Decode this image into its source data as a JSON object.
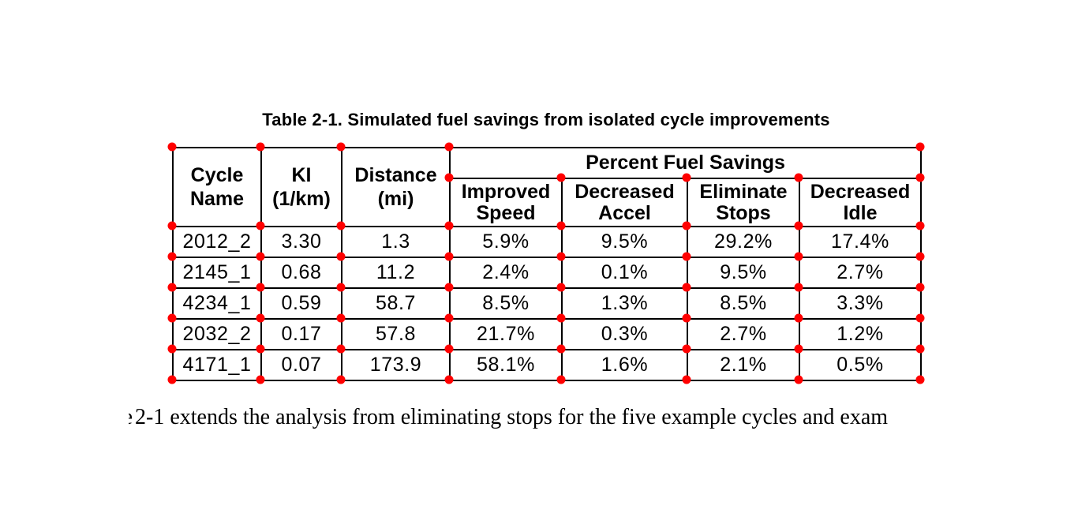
{
  "caption": "Table 2-1. Simulated fuel savings from isolated cycle improvements",
  "table": {
    "headers": {
      "cycle_name": "Cycle\nName",
      "ki": "KI\n(1/km)",
      "distance": "Distance\n(mi)",
      "group": "Percent Fuel Savings",
      "improved_speed": "Improved\nSpeed",
      "decreased_accel": "Decreased\nAccel",
      "eliminate_stops": "Eliminate\nStops",
      "decreased_idle": "Decreased\nIdle"
    },
    "rows": [
      [
        "2012_2",
        "3.30",
        "1.3",
        "5.9%",
        "9.5%",
        "29.2%",
        "17.4%"
      ],
      [
        "2145_1",
        "0.68",
        "11.2",
        "2.4%",
        "0.1%",
        "9.5%",
        "2.7%"
      ],
      [
        "4234_1",
        "0.59",
        "58.7",
        "8.5%",
        "1.3%",
        "8.5%",
        "3.3%"
      ],
      [
        "2032_2",
        "0.17",
        "57.8",
        "21.7%",
        "0.3%",
        "2.7%",
        "1.2%"
      ],
      [
        "4171_1",
        "0.07",
        "173.9",
        "58.1%",
        "1.6%",
        "2.1%",
        "0.5%"
      ]
    ]
  },
  "body_text": {
    "clipped_char": "e",
    "sentence": "2-1 extends the analysis from eliminating stops for the five example cycles and exam"
  },
  "annotation": {
    "dot_color": "#ff0000"
  },
  "colors": {
    "background": "#ffffff",
    "text": "#000000",
    "table_border": "#000000"
  },
  "chart_data": {
    "type": "table",
    "title": "Table 2-1. Simulated fuel savings from isolated cycle improvements",
    "column_group": {
      "label": "Percent Fuel Savings",
      "spans": [
        "Improved Speed",
        "Decreased Accel",
        "Eliminate Stops",
        "Decreased Idle"
      ]
    },
    "columns": [
      "Cycle Name",
      "KI (1/km)",
      "Distance (mi)",
      "Improved Speed",
      "Decreased Accel",
      "Eliminate Stops",
      "Decreased Idle"
    ],
    "rows": [
      [
        "2012_2",
        3.3,
        1.3,
        5.9,
        9.5,
        29.2,
        17.4
      ],
      [
        "2145_1",
        0.68,
        11.2,
        2.4,
        0.1,
        9.5,
        2.7
      ],
      [
        "4234_1",
        0.59,
        58.7,
        8.5,
        1.3,
        8.5,
        3.3
      ],
      [
        "2032_2",
        0.17,
        57.8,
        21.7,
        0.3,
        2.7,
        1.2
      ],
      [
        "4171_1",
        0.07,
        173.9,
        58.1,
        1.6,
        2.1,
        0.5
      ]
    ],
    "units": "percent fuel savings"
  }
}
